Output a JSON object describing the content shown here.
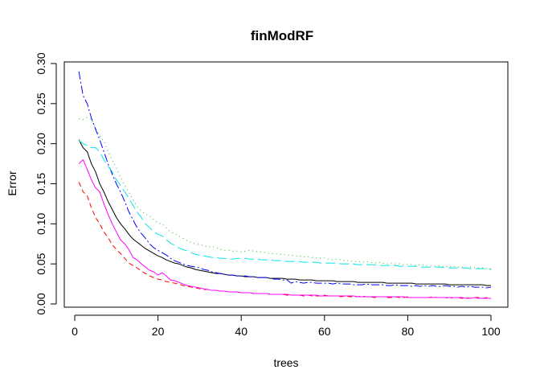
{
  "chart_data": {
    "type": "line",
    "title": "finModRF",
    "xlabel": "trees",
    "ylabel": "Error",
    "xlim": [
      1,
      100
    ],
    "ylim": [
      0,
      0.3
    ],
    "x_ticks": [
      "0",
      "20",
      "40",
      "60",
      "80",
      "100"
    ],
    "y_ticks": [
      "0.00",
      "0.05",
      "0.10",
      "0.15",
      "0.20",
      "0.25",
      "0.30"
    ],
    "grid": false,
    "legend": "none",
    "x": [
      1,
      2,
      3,
      4,
      5,
      6,
      7,
      8,
      9,
      10,
      11,
      12,
      13,
      14,
      15,
      16,
      17,
      18,
      19,
      20,
      21,
      22,
      23,
      24,
      25,
      26,
      27,
      28,
      29,
      30,
      31,
      32,
      33,
      34,
      35,
      36,
      37,
      38,
      39,
      40,
      41,
      42,
      43,
      44,
      45,
      46,
      47,
      48,
      49,
      50,
      51,
      52,
      53,
      54,
      55,
      56,
      57,
      58,
      59,
      60,
      61,
      62,
      63,
      64,
      65,
      66,
      67,
      68,
      69,
      70,
      71,
      72,
      73,
      74,
      75,
      76,
      77,
      78,
      79,
      80,
      81,
      82,
      83,
      84,
      85,
      86,
      87,
      88,
      89,
      90,
      91,
      92,
      93,
      94,
      95,
      96,
      97,
      98,
      99,
      100
    ],
    "series": [
      {
        "color": "#000000",
        "dash": "",
        "values": [
          0.205,
          0.195,
          0.19,
          0.175,
          0.165,
          0.15,
          0.14,
          0.128,
          0.118,
          0.108,
          0.1,
          0.094,
          0.087,
          0.081,
          0.077,
          0.073,
          0.069,
          0.066,
          0.063,
          0.06,
          0.058,
          0.055,
          0.053,
          0.051,
          0.05,
          0.048,
          0.046,
          0.045,
          0.043,
          0.042,
          0.041,
          0.04,
          0.039,
          0.038,
          0.038,
          0.037,
          0.036,
          0.036,
          0.035,
          0.035,
          0.034,
          0.034,
          0.034,
          0.033,
          0.033,
          0.033,
          0.032,
          0.032,
          0.032,
          0.032,
          0.031,
          0.031,
          0.031,
          0.03,
          0.03,
          0.03,
          0.03,
          0.029,
          0.029,
          0.029,
          0.029,
          0.029,
          0.028,
          0.028,
          0.028,
          0.028,
          0.028,
          0.027,
          0.027,
          0.027,
          0.027,
          0.027,
          0.027,
          0.027,
          0.026,
          0.026,
          0.026,
          0.026,
          0.026,
          0.026,
          0.026,
          0.025,
          0.025,
          0.025,
          0.025,
          0.025,
          0.025,
          0.025,
          0.025,
          0.024,
          0.024,
          0.024,
          0.024,
          0.024,
          0.024,
          0.024,
          0.024,
          0.024,
          0.023,
          0.023
        ]
      },
      {
        "color": "#ff0000",
        "dash": "6,4",
        "values": [
          0.152,
          0.14,
          0.135,
          0.12,
          0.108,
          0.1,
          0.09,
          0.083,
          0.074,
          0.068,
          0.063,
          0.057,
          0.051,
          0.048,
          0.045,
          0.041,
          0.038,
          0.035,
          0.033,
          0.031,
          0.03,
          0.028,
          0.027,
          0.026,
          0.025,
          0.023,
          0.022,
          0.021,
          0.02,
          0.019,
          0.018,
          0.018,
          0.017,
          0.017,
          0.016,
          0.016,
          0.015,
          0.015,
          0.015,
          0.014,
          0.014,
          0.014,
          0.013,
          0.013,
          0.013,
          0.013,
          0.012,
          0.012,
          0.012,
          0.012,
          0.011,
          0.011,
          0.011,
          0.011,
          0.01,
          0.011,
          0.01,
          0.01,
          0.01,
          0.011,
          0.01,
          0.01,
          0.01,
          0.009,
          0.01,
          0.009,
          0.009,
          0.009,
          0.01,
          0.009,
          0.009,
          0.008,
          0.009,
          0.009,
          0.008,
          0.008,
          0.009,
          0.008,
          0.008,
          0.009,
          0.008,
          0.008,
          0.008,
          0.008,
          0.008,
          0.009,
          0.008,
          0.008,
          0.008,
          0.007,
          0.008,
          0.008,
          0.007,
          0.008,
          0.007,
          0.008,
          0.008,
          0.007,
          0.008,
          0.007
        ]
      },
      {
        "color": "#22bb22",
        "dash": "1,4",
        "values": [
          0.231,
          0.23,
          0.233,
          0.23,
          0.22,
          0.21,
          0.203,
          0.19,
          0.18,
          0.17,
          0.158,
          0.148,
          0.14,
          0.13,
          0.122,
          0.116,
          0.112,
          0.11,
          0.105,
          0.101,
          0.1,
          0.095,
          0.09,
          0.088,
          0.085,
          0.082,
          0.079,
          0.077,
          0.075,
          0.074,
          0.073,
          0.071,
          0.072,
          0.07,
          0.068,
          0.067,
          0.067,
          0.066,
          0.066,
          0.065,
          0.066,
          0.067,
          0.066,
          0.065,
          0.065,
          0.064,
          0.063,
          0.063,
          0.062,
          0.062,
          0.061,
          0.061,
          0.06,
          0.06,
          0.059,
          0.059,
          0.058,
          0.058,
          0.057,
          0.058,
          0.056,
          0.055,
          0.056,
          0.055,
          0.054,
          0.054,
          0.053,
          0.053,
          0.052,
          0.053,
          0.052,
          0.051,
          0.052,
          0.051,
          0.05,
          0.051,
          0.05,
          0.05,
          0.049,
          0.05,
          0.049,
          0.048,
          0.049,
          0.048,
          0.048,
          0.047,
          0.048,
          0.047,
          0.047,
          0.046,
          0.047,
          0.046,
          0.046,
          0.045,
          0.046,
          0.045,
          0.045,
          0.045,
          0.044,
          0.044
        ]
      },
      {
        "color": "#0000ff",
        "dash": "10,3,2,3",
        "values": [
          0.29,
          0.26,
          0.25,
          0.232,
          0.218,
          0.205,
          0.19,
          0.175,
          0.162,
          0.15,
          0.14,
          0.128,
          0.115,
          0.105,
          0.095,
          0.088,
          0.082,
          0.075,
          0.07,
          0.067,
          0.064,
          0.061,
          0.057,
          0.054,
          0.052,
          0.05,
          0.048,
          0.047,
          0.046,
          0.045,
          0.043,
          0.042,
          0.04,
          0.039,
          0.038,
          0.037,
          0.036,
          0.036,
          0.035,
          0.035,
          0.035,
          0.034,
          0.034,
          0.033,
          0.033,
          0.033,
          0.032,
          0.031,
          0.031,
          0.03,
          0.03,
          0.026,
          0.028,
          0.027,
          0.026,
          0.027,
          0.027,
          0.026,
          0.026,
          0.026,
          0.026,
          0.025,
          0.026,
          0.025,
          0.025,
          0.025,
          0.024,
          0.024,
          0.024,
          0.025,
          0.024,
          0.024,
          0.024,
          0.024,
          0.023,
          0.023,
          0.024,
          0.023,
          0.023,
          0.023,
          0.022,
          0.023,
          0.022,
          0.023,
          0.022,
          0.023,
          0.022,
          0.022,
          0.023,
          0.022,
          0.022,
          0.021,
          0.022,
          0.021,
          0.022,
          0.021,
          0.021,
          0.021,
          0.02,
          0.021
        ]
      },
      {
        "color": "#00e5e5",
        "dash": "12,5",
        "values": [
          0.204,
          0.2,
          0.198,
          0.195,
          0.195,
          0.19,
          0.18,
          0.172,
          0.165,
          0.155,
          0.148,
          0.14,
          0.132,
          0.123,
          0.115,
          0.108,
          0.1,
          0.095,
          0.09,
          0.087,
          0.085,
          0.08,
          0.076,
          0.073,
          0.07,
          0.068,
          0.066,
          0.064,
          0.062,
          0.061,
          0.06,
          0.059,
          0.058,
          0.058,
          0.057,
          0.057,
          0.056,
          0.056,
          0.057,
          0.057,
          0.057,
          0.056,
          0.056,
          0.056,
          0.055,
          0.055,
          0.055,
          0.054,
          0.054,
          0.054,
          0.053,
          0.053,
          0.053,
          0.053,
          0.052,
          0.052,
          0.052,
          0.052,
          0.051,
          0.051,
          0.051,
          0.051,
          0.051,
          0.05,
          0.05,
          0.05,
          0.05,
          0.049,
          0.049,
          0.049,
          0.049,
          0.049,
          0.048,
          0.048,
          0.048,
          0.048,
          0.048,
          0.047,
          0.047,
          0.047,
          0.047,
          0.047,
          0.046,
          0.046,
          0.046,
          0.046,
          0.046,
          0.046,
          0.045,
          0.045,
          0.045,
          0.045,
          0.045,
          0.045,
          0.044,
          0.044,
          0.044,
          0.044,
          0.044,
          0.043
        ]
      },
      {
        "color": "#ff00ff",
        "dash": "",
        "values": [
          0.175,
          0.18,
          0.168,
          0.155,
          0.145,
          0.14,
          0.125,
          0.112,
          0.1,
          0.09,
          0.08,
          0.075,
          0.068,
          0.058,
          0.055,
          0.05,
          0.046,
          0.042,
          0.04,
          0.036,
          0.039,
          0.035,
          0.03,
          0.029,
          0.027,
          0.025,
          0.023,
          0.022,
          0.021,
          0.02,
          0.019,
          0.018,
          0.017,
          0.017,
          0.016,
          0.016,
          0.015,
          0.015,
          0.015,
          0.014,
          0.014,
          0.014,
          0.013,
          0.013,
          0.013,
          0.013,
          0.012,
          0.012,
          0.012,
          0.012,
          0.012,
          0.011,
          0.011,
          0.011,
          0.011,
          0.011,
          0.011,
          0.011,
          0.01,
          0.01,
          0.01,
          0.01,
          0.01,
          0.01,
          0.01,
          0.01,
          0.01,
          0.009,
          0.009,
          0.009,
          0.009,
          0.009,
          0.009,
          0.009,
          0.009,
          0.009,
          0.009,
          0.009,
          0.009,
          0.008,
          0.008,
          0.008,
          0.008,
          0.008,
          0.008,
          0.008,
          0.008,
          0.008,
          0.008,
          0.008,
          0.008,
          0.008,
          0.008,
          0.007,
          0.007,
          0.008,
          0.007,
          0.007,
          0.007,
          0.007
        ]
      }
    ]
  }
}
